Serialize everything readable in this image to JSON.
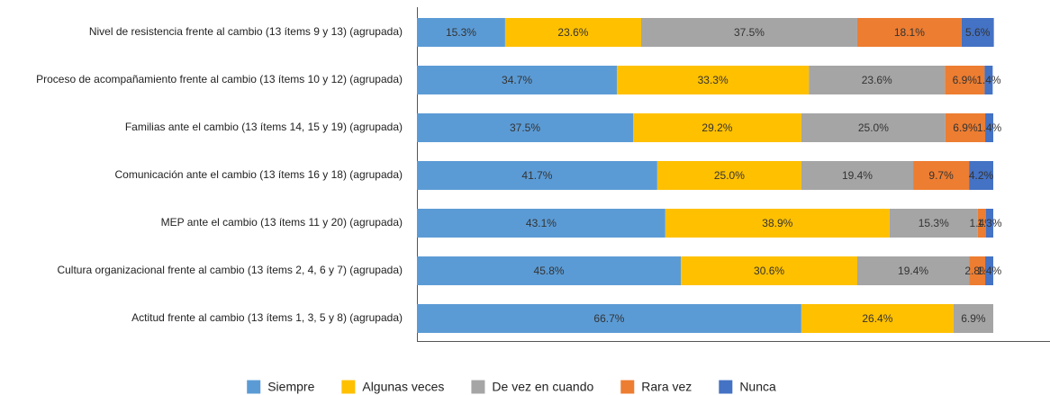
{
  "chart_data": {
    "type": "stacked-bar-horizontal",
    "categories": [
      "Nivel de resistencia frente al cambio (13 ítems 9 y 13) (agrupada)",
      "Proceso de acompañamiento frente al cambio (13 ítems 10 y 12)  (agrupada)",
      "Familias ante el cambio (13 ítems 14, 15 y 19) (agrupada)",
      "Comunicación ante el cambio (13 ítems 16 y 18) (agrupada)",
      "MEP ante el cambio (13 ítems 11 y 20) (agrupada)",
      "Cultura organizacional frente al cambio (13 ítems 2, 4, 6 y 7) (agrupada)",
      "Actitud frente al cambio (13 ítems 1, 3, 5 y 8) (agrupada)"
    ],
    "xlim": [
      0,
      100
    ],
    "legend": "bottom",
    "series": [
      {
        "name": "Siempre",
        "color": "#5b9bd5",
        "values": [
          15.3,
          34.7,
          37.5,
          41.7,
          43.1,
          45.8,
          66.7
        ],
        "value_labels": [
          "15.3%",
          "34.7%",
          "37.5%",
          "41.7%",
          "43.1%",
          "45.8%",
          "66.7%"
        ]
      },
      {
        "name": "Algunas veces",
        "color": "#ffc000",
        "values": [
          23.6,
          33.3,
          29.2,
          25.0,
          38.9,
          30.6,
          26.4
        ],
        "value_labels": [
          "23.6%",
          "33.3%",
          "29.2%",
          "25.0%",
          "38.9%",
          "30.6%",
          "26.4%"
        ]
      },
      {
        "name": "De vez en cuando",
        "color": "#a5a5a5",
        "values": [
          37.5,
          23.6,
          25.0,
          19.4,
          15.3,
          19.4,
          6.9
        ],
        "value_labels": [
          "37.5%",
          "23.6%",
          "25.0%",
          "19.4%",
          "15.3%",
          "19.4%",
          "6.9%"
        ]
      },
      {
        "name": "Rara vez",
        "color": "#ed7d31",
        "values": [
          18.1,
          6.9,
          6.9,
          9.7,
          1.4,
          2.8,
          null
        ],
        "value_labels": [
          "18.1%",
          "6.9%",
          "6.9%",
          "9.7%",
          "1.4%",
          "2.8%",
          null
        ]
      },
      {
        "name": "Nunca",
        "color": "#4472c4",
        "values": [
          5.6,
          1.4,
          1.4,
          4.2,
          1.3,
          1.4,
          null
        ],
        "value_labels": [
          "5.6%",
          "1.4%",
          "1.4%",
          "4.2%",
          "1.3%",
          "1.4%",
          null
        ]
      }
    ]
  }
}
